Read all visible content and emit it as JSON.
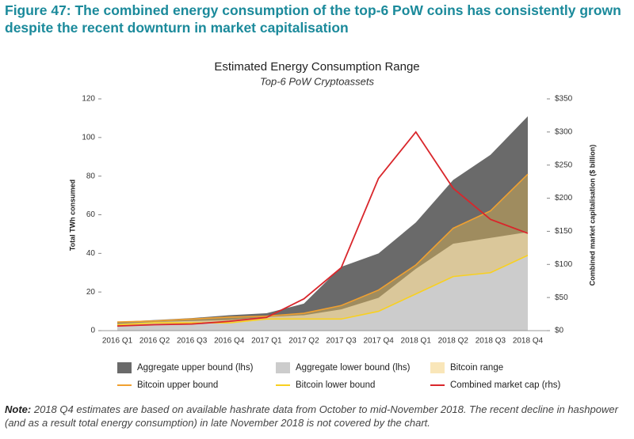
{
  "figure_title": "Figure 47: The combined energy consumption of the top-6 PoW coins has consistently grown despite the recent downturn in market capitalisation",
  "chart_data": {
    "type": "area",
    "title": "Estimated Energy Consumption Range",
    "subtitle": "Top-6 PoW Cryptoassets",
    "ylabel": "Total TWh consumed",
    "y2label": "Combined market capitalisation ($ billion)",
    "categories": [
      "2016 Q1",
      "2016 Q2",
      "2016 Q3",
      "2016 Q4",
      "2017 Q1",
      "2017 Q2",
      "2017 Q3",
      "2017 Q4",
      "2018 Q1",
      "2018 Q2",
      "2018 Q3",
      "2018 Q4"
    ],
    "ylim": [
      0,
      120
    ],
    "yticks": [
      0,
      20,
      40,
      60,
      80,
      100,
      120
    ],
    "y2lim": [
      0,
      350
    ],
    "y2ticks": [
      {
        "value": 0,
        "label": "$0"
      },
      {
        "value": 50,
        "label": "$50"
      },
      {
        "value": 100,
        "label": "$100"
      },
      {
        "value": 150,
        "label": "$150"
      },
      {
        "value": 200,
        "label": "$200"
      },
      {
        "value": 250,
        "label": "$250"
      },
      {
        "value": 300,
        "label": "$300"
      },
      {
        "value": 350,
        "label": "$350"
      }
    ],
    "series": [
      {
        "name": "Aggregate upper bound (lhs)",
        "color": "#6a6a6a",
        "values": [
          4.5,
          5.5,
          6.5,
          8,
          9,
          14,
          33,
          40,
          56,
          78,
          91,
          111
        ]
      },
      {
        "name": "Aggregate lower bound (lhs)",
        "color": "#cccccc",
        "values": [
          3.5,
          4.5,
          5,
          5.5,
          7,
          8,
          11,
          17,
          32,
          45,
          48,
          51
        ]
      },
      {
        "name": "Bitcoin range",
        "color": "#f0c050"
      },
      {
        "name": "Bitcoin upper bound",
        "color": "#f0a030",
        "values": [
          4.5,
          5,
          6,
          7,
          7.5,
          9,
          13,
          21,
          34,
          53,
          62,
          81
        ]
      },
      {
        "name": "Bitcoin lower bound",
        "color": "#f8d020",
        "values": [
          3,
          4,
          4,
          4,
          6,
          6,
          6,
          10,
          19,
          28,
          30,
          39
        ]
      },
      {
        "name": "Combined market cap (rhs)",
        "color": "#d9262b",
        "axis": "y2",
        "values": [
          7,
          9,
          10,
          14,
          20,
          48,
          95,
          230,
          300,
          215,
          168,
          147
        ]
      }
    ]
  },
  "note": {
    "label": "Note:",
    "text": "2018 Q4 estimates are based on available hashrate data from October to mid-November 2018. The recent decline in hashpower (and as a result total energy consumption) in late November 2018 is not covered by the chart."
  }
}
